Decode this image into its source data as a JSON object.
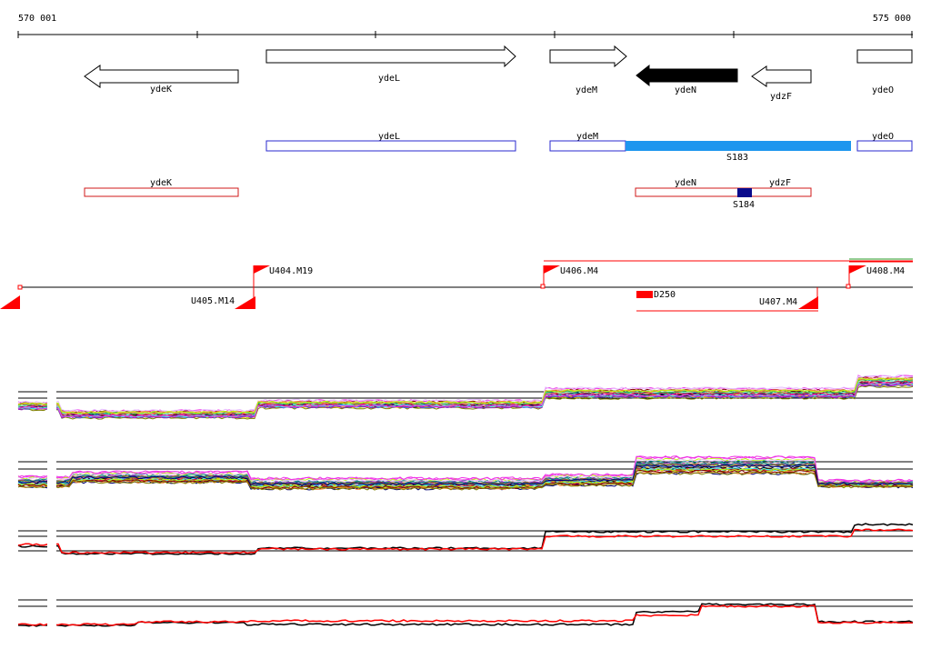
{
  "ruler": {
    "start_label": "570 001",
    "end_label": "575 000"
  },
  "genes": [
    {
      "name": "ydeK",
      "strand": "-",
      "highlight": false
    },
    {
      "name": "ydeL",
      "strand": "+",
      "highlight": false
    },
    {
      "name": "ydeM",
      "strand": "+",
      "highlight": false
    },
    {
      "name": "ydeN",
      "strand": "-",
      "highlight": true
    },
    {
      "name": "ydzF",
      "strand": "-",
      "highlight": false
    },
    {
      "name": "ydeO",
      "strand": "+",
      "highlight": false
    }
  ],
  "blue_track": {
    "boxes": [
      "ydeL",
      "ydeM",
      "ydeO"
    ],
    "segment": "S183",
    "segment_color": "#1E96EE",
    "box_color": "#2A2ACF"
  },
  "red_track": {
    "boxes": [
      "ydeK",
      "ydeN",
      "ydzF"
    ],
    "segment": "S184",
    "segment_color": "#0A0A8C",
    "box_color": "#D01818"
  },
  "upshifts": [
    {
      "label": "U404.M19"
    },
    {
      "label": "U405.M14"
    },
    {
      "label": "U406.M4"
    },
    {
      "label": "U407.M4"
    },
    {
      "label": "U408.M4"
    }
  ],
  "downshift": {
    "label": "D250"
  },
  "colors": {
    "accent_red": "#FF0000",
    "line_black": "#000000",
    "trace_green": "#2A9D2A"
  }
}
